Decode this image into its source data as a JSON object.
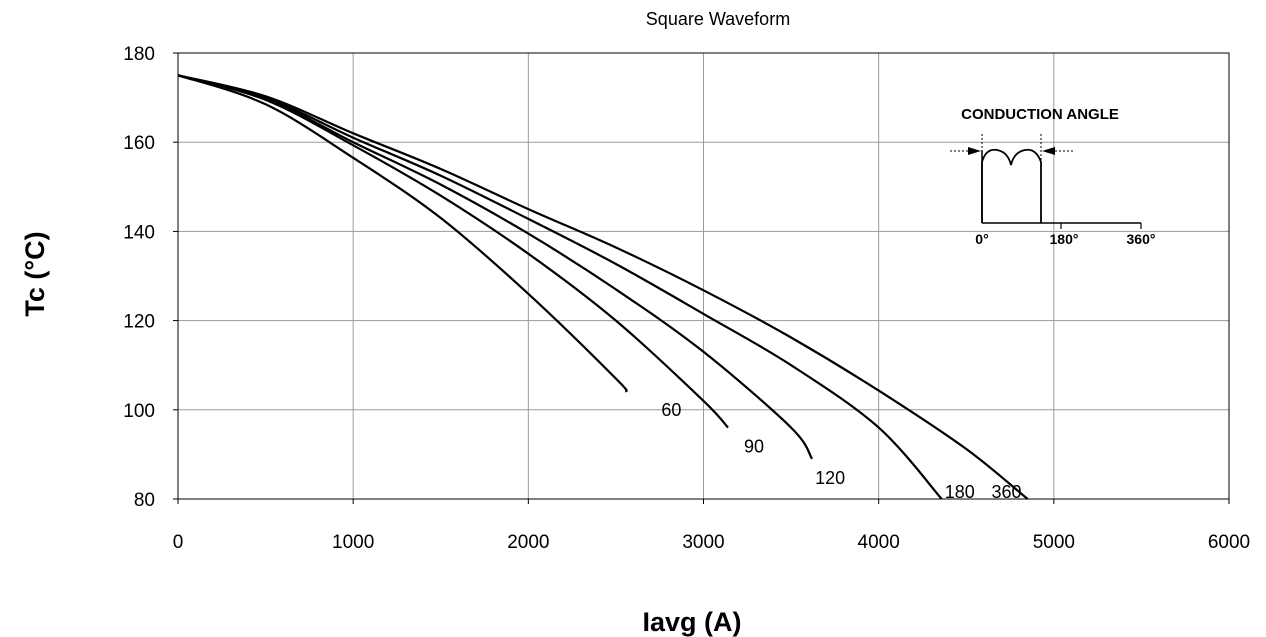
{
  "chart_data": {
    "type": "line",
    "title": "Square Waveform",
    "xlabel": "Iavg (A)",
    "ylabel": "Tc (°C)",
    "xlim": [
      0,
      6000
    ],
    "ylim": [
      80,
      180
    ],
    "xticks": [
      0,
      1000,
      2000,
      3000,
      4000,
      5000,
      6000
    ],
    "yticks": [
      80,
      100,
      120,
      140,
      160,
      180
    ],
    "xtick_labels": [
      "0",
      "1000",
      "2000",
      "3000",
      "4000",
      "5000",
      "6000"
    ],
    "ytick_labels": [
      "80",
      "100",
      "120",
      "140",
      "160",
      "180"
    ],
    "grid": true,
    "series": [
      {
        "name": "60",
        "x": [
          0,
          500,
          1000,
          1500,
          2000,
          2500,
          2560
        ],
        "y": [
          175,
          168.5,
          156.5,
          143,
          126,
          107,
          104
        ]
      },
      {
        "name": "90",
        "x": [
          0,
          500,
          1000,
          1500,
          2000,
          2500,
          3000,
          3140
        ],
        "y": [
          175,
          169.5,
          159.3,
          148,
          135,
          120,
          102,
          96
        ]
      },
      {
        "name": "120",
        "x": [
          0,
          500,
          1000,
          1500,
          2000,
          2500,
          3000,
          3500,
          3620
        ],
        "y": [
          175,
          169.8,
          160,
          150.5,
          139.5,
          127,
          113,
          96,
          89
        ]
      },
      {
        "name": "180",
        "x": [
          0,
          500,
          1000,
          1500,
          2000,
          2500,
          3000,
          3500,
          4000,
          4360
        ],
        "y": [
          175,
          170,
          161,
          152.5,
          142.8,
          132.7,
          121.5,
          110,
          96,
          80
        ]
      },
      {
        "name": "360",
        "x": [
          0,
          500,
          1000,
          1500,
          2000,
          2500,
          3000,
          3500,
          4000,
          4500,
          4850
        ],
        "y": [
          175,
          170.3,
          162,
          154,
          145,
          136.4,
          126.8,
          116.2,
          104.3,
          91.2,
          80
        ]
      }
    ],
    "inset": {
      "title": "CONDUCTION ANGLE",
      "tick_labels": [
        "0°",
        "180°",
        "360°"
      ]
    }
  }
}
